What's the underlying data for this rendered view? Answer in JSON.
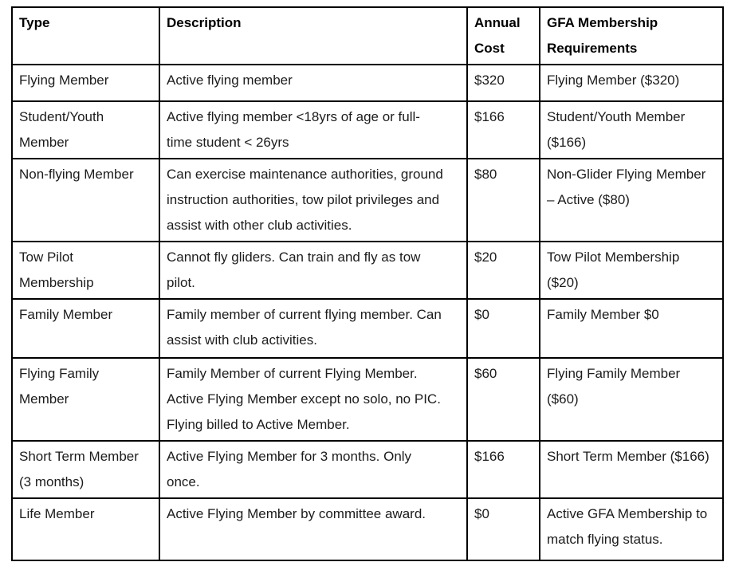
{
  "colors": {
    "background": "#ffffff",
    "border": "#000000",
    "body_text": "#1c1c1c",
    "header_text": "#000000"
  },
  "table": {
    "headers": [
      "Type",
      "Description",
      "Annual Cost",
      "GFA Membership Requirements"
    ],
    "rows": [
      {
        "type": "Flying Member",
        "description": "Active flying member",
        "annual_cost": "$320",
        "gfa_requirement": "Flying Member ($320)"
      },
      {
        "type": "Student/Youth Member",
        "description": "Active flying member <18yrs of age or full-time student < 26yrs",
        "annual_cost": "$166",
        "gfa_requirement": "Student/Youth Member ($166)"
      },
      {
        "type": "Non-flying Member",
        "description": "Can exercise maintenance authorities, ground instruction authorities, tow pilot privileges and assist with other club activities.",
        "annual_cost": "$80",
        "gfa_requirement": "Non-Glider Flying Member – Active ($80)"
      },
      {
        "type": "Tow Pilot Membership",
        "description": "Cannot fly gliders. Can train and fly as tow pilot.",
        "annual_cost": "$20",
        "gfa_requirement": "Tow Pilot Membership ($20)"
      },
      {
        "type": "Family Member",
        "description": "Family member of current flying member. Can assist with club activities.",
        "annual_cost": "$0",
        "gfa_requirement": "Family Member $0"
      },
      {
        "type": "Flying Family Member",
        "description": "Family Member of current Flying Member. Active Flying Member except no solo, no PIC. Flying billed to Active Member.",
        "annual_cost": "$60",
        "gfa_requirement": "Flying Family Member ($60)"
      },
      {
        "type": "Short Term Member (3 months)",
        "description": "Active Flying Member for 3 months. Only once.",
        "annual_cost": "$166",
        "gfa_requirement": "Short Term Member ($166)"
      },
      {
        "type": "Life Member",
        "description": "Active Flying Member by committee award.",
        "annual_cost": "$0",
        "gfa_requirement": "Active GFA Membership to match flying status."
      }
    ]
  }
}
